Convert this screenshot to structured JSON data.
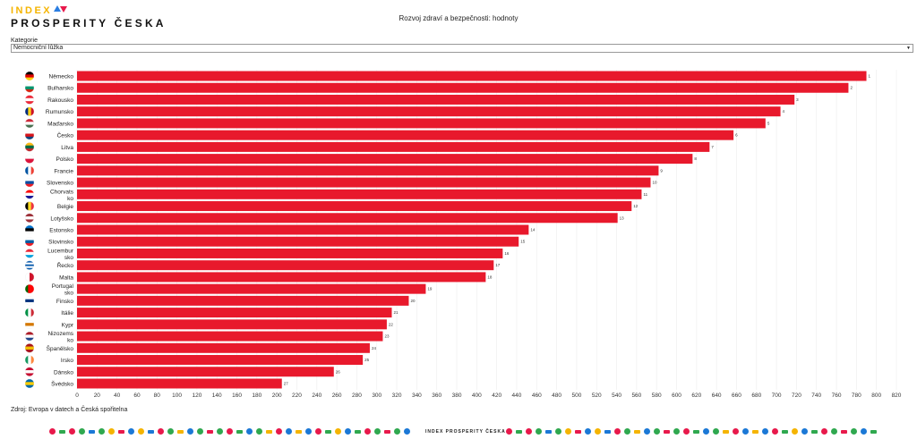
{
  "logo": {
    "line1": "INDEX",
    "line2": "PROSPERITY ČESKA"
  },
  "filter": {
    "label": "Kategorie",
    "value": "Nemocniční lůžka"
  },
  "source": "Zdroj: Evropa v datech a Česká spořitelna",
  "footer_logo": "INDEX PROSPERITY ČESKA",
  "chart_data": {
    "type": "bar",
    "orientation": "horizontal",
    "title": "Rozvoj zdraví a bezpečnosti: hodnoty",
    "xlabel": "",
    "ylabel": "",
    "xlim": [
      0,
      820
    ],
    "xticks": [
      0,
      20,
      40,
      60,
      80,
      100,
      120,
      140,
      160,
      180,
      200,
      220,
      240,
      260,
      280,
      300,
      320,
      340,
      360,
      380,
      400,
      420,
      440,
      460,
      480,
      500,
      520,
      540,
      560,
      580,
      600,
      620,
      640,
      660,
      680,
      700,
      720,
      740,
      760,
      780,
      800,
      820
    ],
    "grid": true,
    "bar_color": "#e8192c",
    "categories": [
      {
        "label": "Německo",
        "value": 790,
        "rank": "1",
        "flag": [
          "#000000",
          "#dd0000",
          "#ffce00"
        ],
        "dir": "h"
      },
      {
        "label": "Bulharsko",
        "value": 772,
        "rank": "2",
        "flag": [
          "#ffffff",
          "#00966e",
          "#d62612"
        ],
        "dir": "h"
      },
      {
        "label": "Rakousko",
        "value": 718,
        "rank": "3",
        "flag": [
          "#ed2939",
          "#ffffff",
          "#ed2939"
        ],
        "dir": "h"
      },
      {
        "label": "Rumunsko",
        "value": 704,
        "rank": "4",
        "flag": [
          "#002b7f",
          "#fcd116",
          "#ce1126"
        ],
        "dir": "v"
      },
      {
        "label": "Maďarsko",
        "value": 689,
        "rank": "5",
        "flag": [
          "#ce2939",
          "#ffffff",
          "#477050"
        ],
        "dir": "h"
      },
      {
        "label": "Česko",
        "value": 657,
        "rank": "6",
        "flag": [
          "#ffffff",
          "#d7141a",
          "#11457e"
        ],
        "dir": "h"
      },
      {
        "label": "Litva",
        "value": 633,
        "rank": "7",
        "flag": [
          "#fdb913",
          "#006a44",
          "#c1272d"
        ],
        "dir": "h"
      },
      {
        "label": "Polsko",
        "value": 616,
        "rank": "8",
        "flag": [
          "#ffffff",
          "#dc143c"
        ],
        "dir": "h"
      },
      {
        "label": "Francie",
        "value": 582,
        "rank": "9",
        "flag": [
          "#0055a4",
          "#ffffff",
          "#ef4135"
        ],
        "dir": "v"
      },
      {
        "label": "Slovensko",
        "value": 574,
        "rank": "10",
        "flag": [
          "#ffffff",
          "#0b4ea2",
          "#ee1c25"
        ],
        "dir": "h"
      },
      {
        "label": "Chorvatsko",
        "value": 565,
        "rank": "11",
        "flag": [
          "#ff0000",
          "#ffffff",
          "#171796"
        ],
        "dir": "h"
      },
      {
        "label": "Belgie",
        "value": 555,
        "rank": "12",
        "flag": [
          "#000000",
          "#fdda24",
          "#ef3340"
        ],
        "dir": "v"
      },
      {
        "label": "Lotyšsko",
        "value": 541,
        "rank": "13",
        "flag": [
          "#9e3039",
          "#ffffff",
          "#9e3039"
        ],
        "dir": "h"
      },
      {
        "label": "Estonsko",
        "value": 452,
        "rank": "14",
        "flag": [
          "#0072ce",
          "#000000",
          "#ffffff"
        ],
        "dir": "h"
      },
      {
        "label": "Slovinsko",
        "value": 442,
        "rank": "15",
        "flag": [
          "#ffffff",
          "#005da4",
          "#ed1c24"
        ],
        "dir": "h"
      },
      {
        "label": "Lucembursko",
        "value": 426,
        "rank": "16",
        "flag": [
          "#ed2939",
          "#ffffff",
          "#00a1de"
        ],
        "dir": "h"
      },
      {
        "label": "Řecko",
        "value": 417,
        "rank": "17",
        "flag": [
          "#0d5eaf",
          "#ffffff",
          "#0d5eaf",
          "#ffffff",
          "#0d5eaf"
        ],
        "dir": "h"
      },
      {
        "label": "Malta",
        "value": 409,
        "rank": "18",
        "flag": [
          "#ffffff",
          "#cf142b"
        ],
        "dir": "v"
      },
      {
        "label": "Portugalsko",
        "value": 349,
        "rank": "19",
        "flag": [
          "#006600",
          "#ff0000",
          "#ff0000"
        ],
        "dir": "v"
      },
      {
        "label": "Finsko",
        "value": 332,
        "rank": "20",
        "flag": [
          "#ffffff",
          "#003580",
          "#ffffff"
        ],
        "dir": "h"
      },
      {
        "label": "Itálie",
        "value": 315,
        "rank": "21",
        "flag": [
          "#009246",
          "#ffffff",
          "#ce2b37"
        ],
        "dir": "v"
      },
      {
        "label": "Kypr",
        "value": 310,
        "rank": "22",
        "flag": [
          "#ffffff",
          "#d57800",
          "#ffffff"
        ],
        "dir": "h"
      },
      {
        "label": "Nizozemsko",
        "value": 306,
        "rank": "23",
        "flag": [
          "#ae1c28",
          "#ffffff",
          "#21468b"
        ],
        "dir": "h"
      },
      {
        "label": "Španělsko",
        "value": 293,
        "rank": "24",
        "flag": [
          "#aa151b",
          "#f1bf00",
          "#aa151b"
        ],
        "dir": "h"
      },
      {
        "label": "Irsko",
        "value": 286,
        "rank": "25",
        "flag": [
          "#169b62",
          "#ffffff",
          "#ff883e"
        ],
        "dir": "v"
      },
      {
        "label": "Dánsko",
        "value": 257,
        "rank": "26",
        "flag": [
          "#c60c30",
          "#ffffff",
          "#c60c30"
        ],
        "dir": "h"
      },
      {
        "label": "Švédsko",
        "value": 205,
        "rank": "27",
        "flag": [
          "#006aa7",
          "#fecc00",
          "#006aa7"
        ],
        "dir": "h"
      }
    ]
  }
}
